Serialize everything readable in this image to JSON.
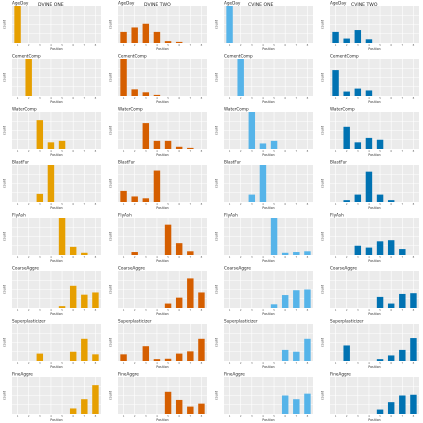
{
  "chart_data": {
    "type": "bar",
    "column_headers": [
      "DVINE ONE",
      "",
      "DVINE TWO",
      "",
      "CVINE ONE",
      "",
      "CVINE TWO"
    ],
    "xlabel": "Position",
    "ylabel": "count",
    "x_ticks": [
      "1",
      "2",
      "3",
      "4",
      "5",
      "6",
      "7",
      "8"
    ],
    "columns": [
      {
        "color": "#E69F00"
      },
      {
        "color": "#D55E00"
      },
      {
        "color": "#56B4E9"
      },
      {
        "color": "#0072B2"
      }
    ],
    "rows": [
      {
        "variable": "AgeDay",
        "panels": [
          [
            100,
            0,
            0,
            0,
            0,
            0,
            0,
            0
          ],
          [
            30,
            42,
            52,
            30,
            5,
            3,
            0,
            0
          ],
          [
            100,
            0,
            0,
            0,
            0,
            0,
            0,
            0
          ],
          [
            30,
            12,
            35,
            10,
            0,
            0,
            0,
            0
          ]
        ]
      },
      {
        "variable": "CementComp",
        "panels": [
          [
            0,
            100,
            0,
            0,
            0,
            0,
            0,
            0
          ],
          [
            100,
            18,
            10,
            3,
            0,
            0,
            0,
            0
          ],
          [
            0,
            100,
            0,
            0,
            0,
            0,
            0,
            0
          ],
          [
            70,
            12,
            20,
            15,
            0,
            0,
            0,
            0
          ]
        ]
      },
      {
        "variable": "WaterComp",
        "panels": [
          [
            0,
            0,
            78,
            18,
            22,
            0,
            0,
            0
          ],
          [
            0,
            0,
            70,
            22,
            22,
            6,
            3,
            0
          ],
          [
            0,
            0,
            100,
            15,
            22,
            0,
            0,
            0
          ],
          [
            0,
            60,
            18,
            30,
            25,
            0,
            0,
            0
          ]
        ]
      },
      {
        "variable": "BlastFur",
        "panels": [
          [
            0,
            0,
            22,
            100,
            0,
            0,
            0,
            0
          ],
          [
            30,
            15,
            10,
            85,
            0,
            0,
            0,
            0
          ],
          [
            0,
            0,
            20,
            100,
            0,
            0,
            0,
            0
          ],
          [
            0,
            5,
            20,
            82,
            20,
            5,
            0,
            0
          ]
        ]
      },
      {
        "variable": "FlyAsh",
        "panels": [
          [
            0,
            0,
            0,
            0,
            100,
            22,
            6,
            0
          ],
          [
            0,
            8,
            0,
            0,
            82,
            32,
            10,
            0
          ],
          [
            0,
            0,
            0,
            0,
            100,
            6,
            8,
            10
          ],
          [
            0,
            0,
            25,
            20,
            37,
            40,
            16,
            0
          ]
        ]
      },
      {
        "variable": "CoarseAggre",
        "panels": [
          [
            0,
            0,
            0,
            0,
            5,
            60,
            36,
            42
          ],
          [
            0,
            0,
            0,
            0,
            12,
            28,
            80,
            42
          ],
          [
            0,
            0,
            0,
            0,
            10,
            35,
            48,
            50
          ],
          [
            0,
            0,
            0,
            0,
            30,
            12,
            38,
            40
          ]
        ]
      },
      {
        "variable": "Superplasticizer",
        "panels": [
          [
            0,
            0,
            20,
            0,
            0,
            25,
            60,
            18
          ],
          [
            18,
            0,
            40,
            5,
            6,
            20,
            26,
            60
          ],
          [
            0,
            0,
            0,
            0,
            0,
            30,
            25,
            60
          ],
          [
            0,
            42,
            0,
            0,
            5,
            15,
            30,
            62
          ]
        ]
      },
      {
        "variable": "FineAggre",
        "panels": [
          [
            0,
            0,
            0,
            0,
            0,
            15,
            40,
            78
          ],
          [
            0,
            0,
            0,
            0,
            60,
            38,
            20,
            28
          ],
          [
            0,
            0,
            0,
            0,
            0,
            50,
            40,
            55
          ],
          [
            0,
            0,
            0,
            0,
            12,
            32,
            50,
            52
          ]
        ]
      }
    ]
  }
}
